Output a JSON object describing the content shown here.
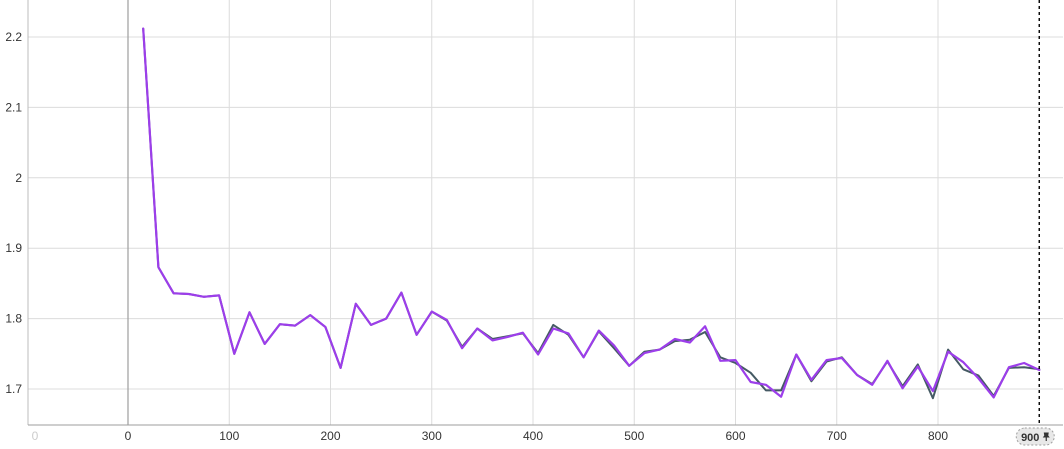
{
  "chart_data": {
    "type": "line",
    "title": "",
    "xlabel": "",
    "ylabel": "",
    "xlim": [
      -100,
      915
    ],
    "ylim": [
      1.65,
      2.25
    ],
    "x_ticks": [
      0,
      100,
      200,
      300,
      400,
      500,
      600,
      700,
      800
    ],
    "x_ticks_text": [
      "0",
      "100",
      "200",
      "300",
      "400",
      "500",
      "600",
      "700",
      "800"
    ],
    "x_ghost_label": "0",
    "y_ticks": [
      1.7,
      1.8,
      1.9,
      2.0,
      2.1,
      2.2
    ],
    "y_ticks_text": [
      "1.7",
      "1.8",
      "1.9",
      "2",
      "2.1",
      "2.2"
    ],
    "grid": true,
    "step_marker": {
      "value": 900,
      "label": "900"
    },
    "series": [
      {
        "color": "#455a64",
        "x": [
          15,
          30,
          45,
          60,
          75,
          90,
          105,
          120,
          135,
          150,
          165,
          180,
          195,
          210,
          225,
          240,
          255,
          270,
          285,
          300,
          315,
          330,
          345,
          360,
          375,
          390,
          405,
          420,
          435,
          450,
          465,
          480,
          495,
          510,
          525,
          540,
          555,
          570,
          585,
          600,
          615,
          630,
          645,
          660,
          675,
          690,
          705,
          720,
          735,
          750,
          765,
          780,
          795,
          810,
          825,
          840,
          855,
          870,
          885,
          900
        ],
        "y": [
          2.212,
          1.873,
          1.836,
          1.835,
          1.831,
          1.833,
          1.75,
          1.809,
          1.764,
          1.792,
          1.79,
          1.805,
          1.788,
          1.73,
          1.821,
          1.791,
          1.8,
          1.837,
          1.777,
          1.81,
          1.797,
          1.76,
          1.786,
          1.771,
          1.775,
          1.779,
          1.751,
          1.791,
          1.777,
          1.745,
          1.782,
          1.758,
          1.733,
          1.753,
          1.756,
          1.768,
          1.77,
          1.781,
          1.745,
          1.737,
          1.723,
          1.698,
          1.698,
          1.749,
          1.711,
          1.739,
          1.745,
          1.72,
          1.707,
          1.739,
          1.704,
          1.735,
          1.687,
          1.756,
          1.728,
          1.719,
          1.69,
          1.73,
          1.731,
          1.728
        ]
      },
      {
        "color": "#9c3eea",
        "x": [
          15,
          30,
          45,
          60,
          75,
          90,
          105,
          120,
          135,
          150,
          165,
          180,
          195,
          210,
          225,
          240,
          255,
          270,
          285,
          300,
          315,
          330,
          345,
          360,
          375,
          390,
          405,
          420,
          435,
          450,
          465,
          480,
          495,
          510,
          525,
          540,
          555,
          570,
          585,
          600,
          615,
          630,
          645,
          660,
          675,
          690,
          705,
          720,
          735,
          750,
          765,
          780,
          795,
          810,
          825,
          840,
          855,
          870,
          885,
          900
        ],
        "y": [
          2.212,
          1.873,
          1.836,
          1.835,
          1.831,
          1.833,
          1.75,
          1.809,
          1.764,
          1.792,
          1.79,
          1.805,
          1.788,
          1.73,
          1.821,
          1.791,
          1.8,
          1.837,
          1.777,
          1.81,
          1.798,
          1.758,
          1.786,
          1.769,
          1.774,
          1.78,
          1.749,
          1.786,
          1.779,
          1.745,
          1.783,
          1.762,
          1.733,
          1.751,
          1.756,
          1.771,
          1.766,
          1.789,
          1.74,
          1.741,
          1.71,
          1.706,
          1.689,
          1.749,
          1.713,
          1.741,
          1.744,
          1.72,
          1.706,
          1.74,
          1.701,
          1.732,
          1.697,
          1.753,
          1.738,
          1.715,
          1.688,
          1.731,
          1.737,
          1.727
        ]
      }
    ]
  }
}
